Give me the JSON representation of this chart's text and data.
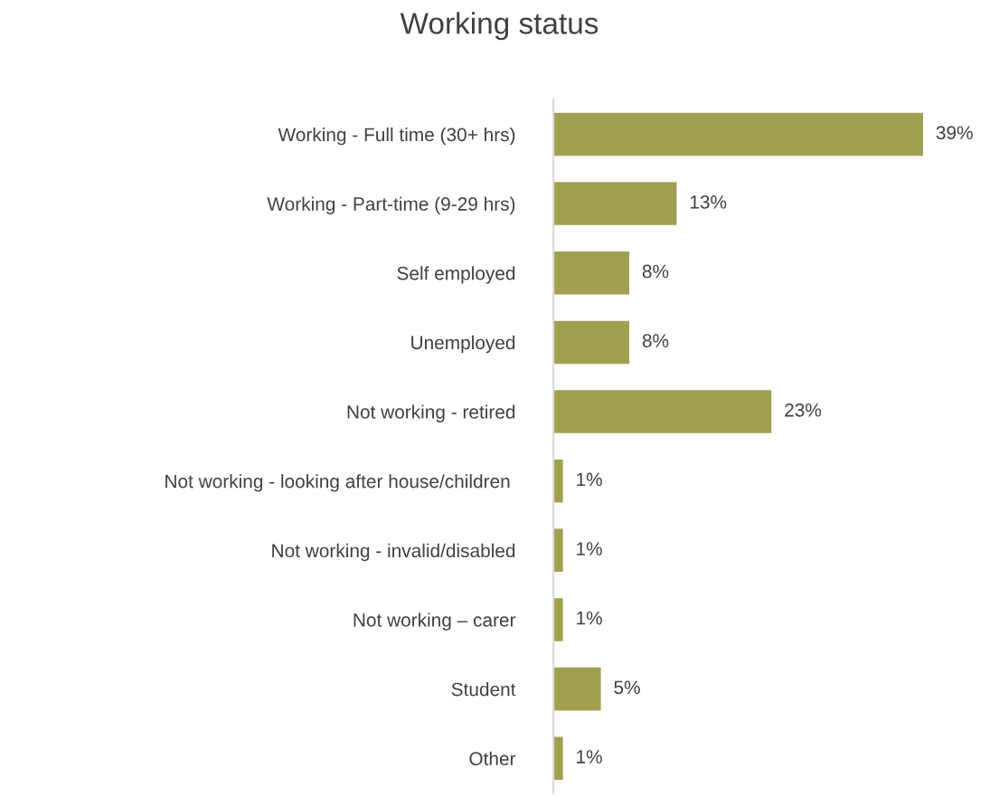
{
  "chart_data": {
    "type": "bar",
    "orientation": "horizontal",
    "title": "Working status",
    "categories": [
      "Working - Full time (30+ hrs)",
      "Working - Part-time (9-29 hrs)",
      "Self employed",
      "Unemployed",
      "Not working - retired",
      "Not working - looking after house/children ",
      "Not working - invalid/disabled",
      "Not working – carer",
      "Student",
      "Other"
    ],
    "values": [
      39,
      13,
      8,
      8,
      23,
      1,
      1,
      1,
      5,
      1
    ],
    "value_labels": [
      "39%",
      "13%",
      "8%",
      "8%",
      "23%",
      "1%",
      "1%",
      "1%",
      "5%",
      "1%"
    ],
    "color": "#a0a050",
    "tick_labels": "y",
    "grid": false,
    "legend": false
  }
}
